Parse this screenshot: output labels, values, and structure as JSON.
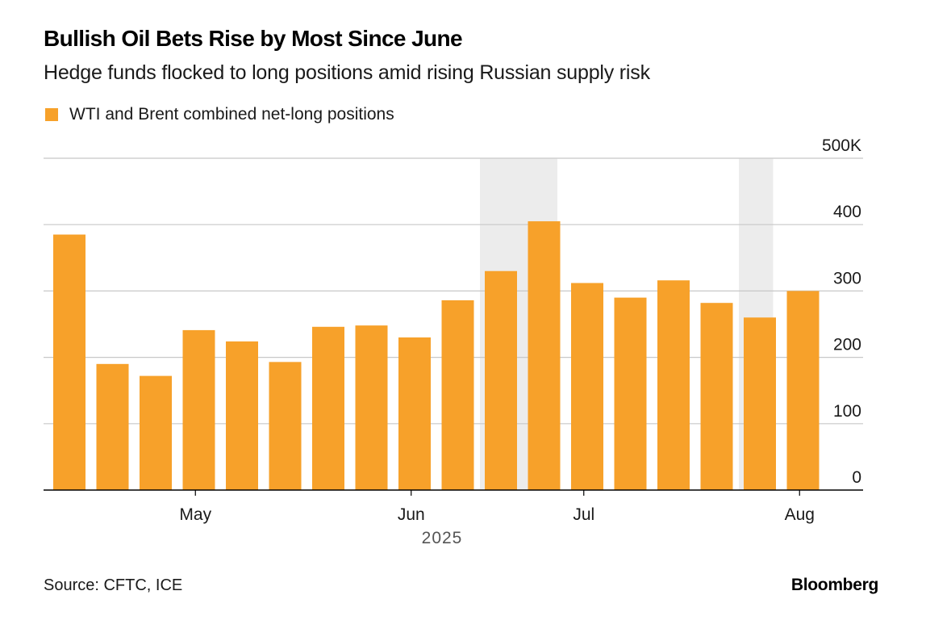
{
  "header": {
    "title": "Bullish Oil Bets Rise by Most Since June",
    "subtitle": "Hedge funds flocked to long positions amid rising Russian supply risk"
  },
  "legend": {
    "label": "WTI and Brent combined net-long positions"
  },
  "footer": {
    "source": "Source: CFTC, ICE",
    "brand": "Bloomberg"
  },
  "colors": {
    "bar": "#f7a12a",
    "shade": "#ececec",
    "grid": "#c8c8c8",
    "axis": "#000000",
    "text": "#1a1a1a"
  },
  "chart_data": {
    "type": "bar",
    "title": "Bullish Oil Bets Rise by Most Since June",
    "subtitle": "Hedge funds flocked to long positions amid rising Russian supply risk",
    "series": [
      {
        "name": "WTI and Brent combined net-long positions",
        "values": [
          385,
          190,
          172,
          241,
          224,
          193,
          246,
          248,
          230,
          286,
          330,
          405,
          312,
          290,
          316,
          282,
          260,
          300
        ]
      }
    ],
    "ylim": [
      0,
      500
    ],
    "yticks": [
      0,
      100,
      200,
      300,
      400,
      500
    ],
    "ytick_labels": [
      "0",
      "100",
      "200",
      "300",
      "400",
      "500K"
    ],
    "x_tick_labels": [
      {
        "label": "May",
        "position": 3.5
      },
      {
        "label": "Jun",
        "position": 8.5
      },
      {
        "label": "Jul",
        "position": 12.5
      },
      {
        "label": "Aug",
        "position": 17.5
      }
    ],
    "x_sublabel": "2025",
    "shaded_ranges": [
      [
        10,
        11
      ],
      [
        16,
        16
      ]
    ],
    "y_axis_side": "right",
    "grid": true
  }
}
